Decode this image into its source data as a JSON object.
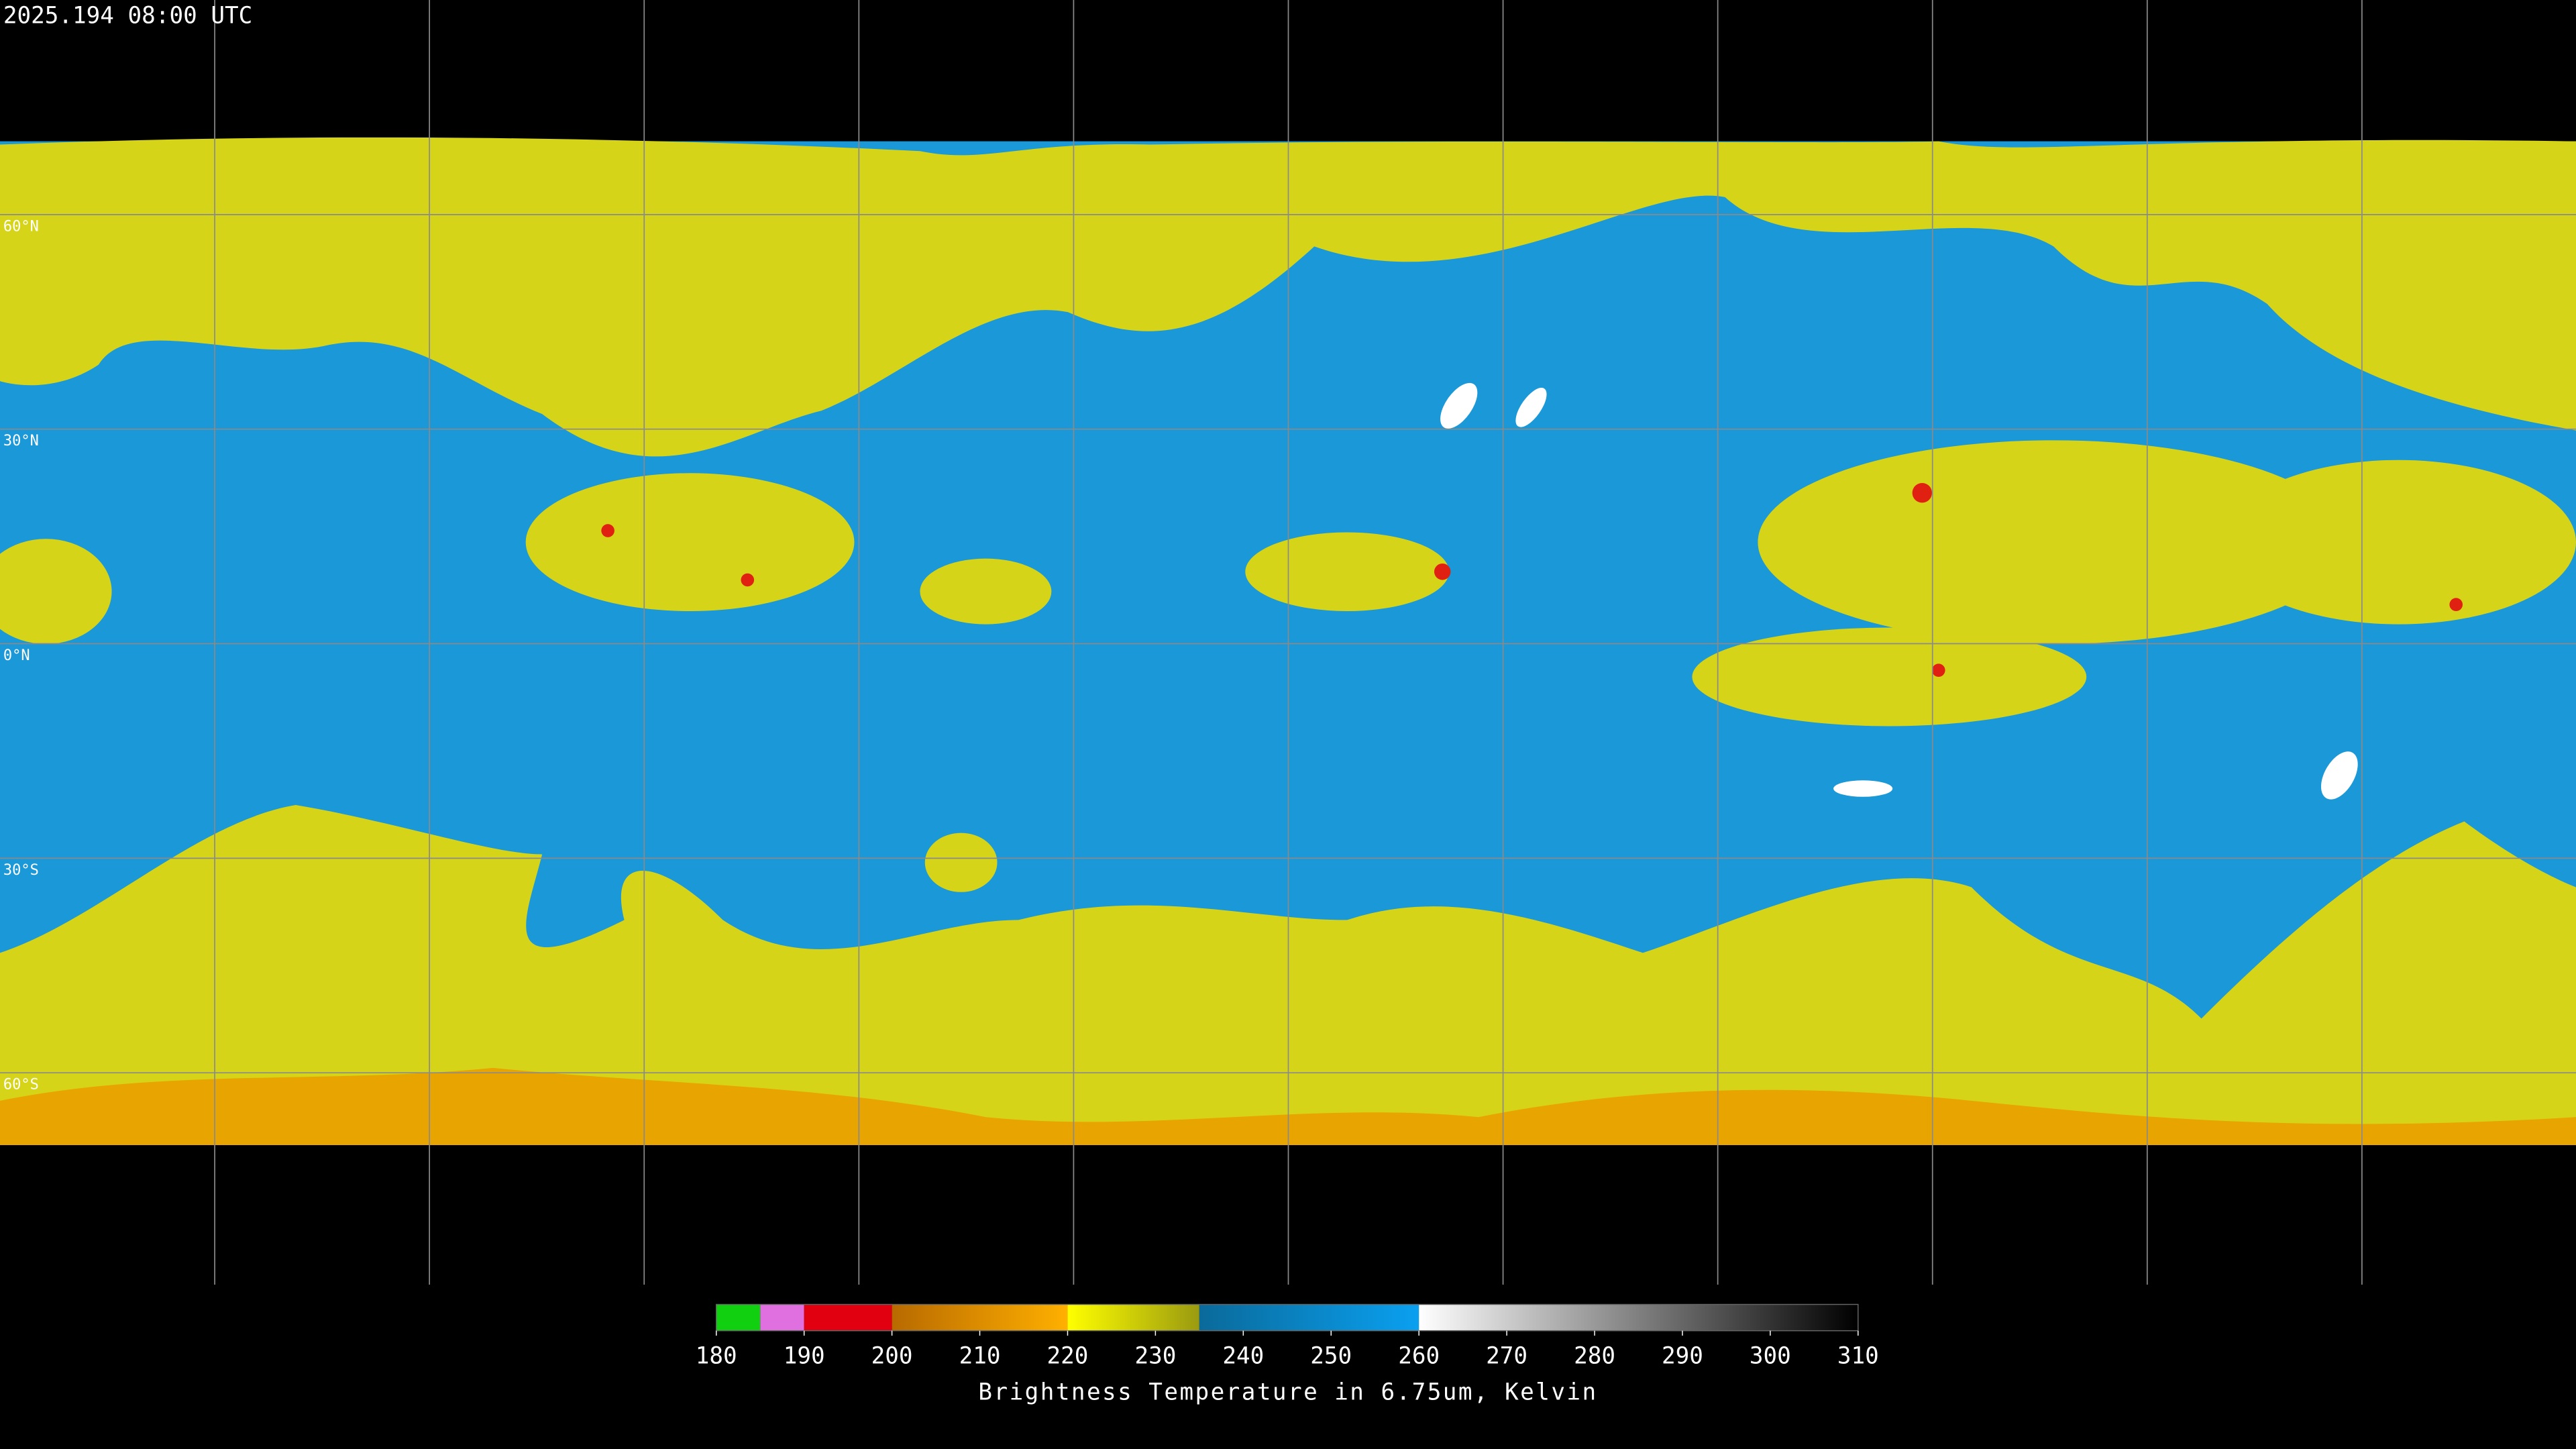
{
  "header": {
    "timestamp": "2025.194 08:00 UTC"
  },
  "map": {
    "lat_labels": [
      "60°N",
      "30°N",
      "0°N",
      "30°S",
      "60°S"
    ]
  },
  "colorbar": {
    "range": [
      180,
      310
    ],
    "ticks": [
      180,
      190,
      200,
      210,
      220,
      230,
      240,
      250,
      260,
      270,
      280,
      290,
      300,
      310
    ],
    "label": "Brightness Temperature in 6.75um, Kelvin"
  }
}
